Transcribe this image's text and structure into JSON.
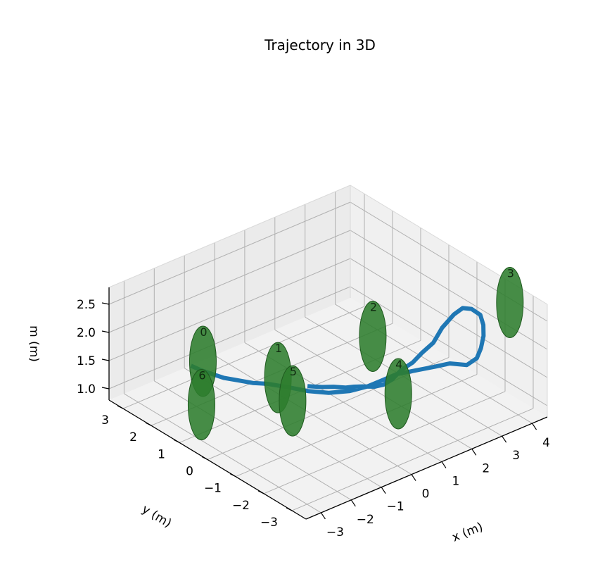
{
  "chart_data": {
    "type": "line3d",
    "title": "Trajectory in 3D",
    "xlabel": "x (m)",
    "ylabel": "y (m)",
    "zlabel": "m (m)",
    "xlim": [
      -3.5,
      4.5
    ],
    "ylim": [
      -3.5,
      3.5
    ],
    "zlim": [
      0.8,
      2.8
    ],
    "xticks": [
      -3,
      -2,
      -1,
      0,
      1,
      2,
      3,
      4
    ],
    "xtick_labels": [
      "−3",
      "−2",
      "−1",
      "0",
      "1",
      "2",
      "3",
      "4"
    ],
    "yticks": [
      -3,
      -2,
      -1,
      0,
      1,
      2,
      3
    ],
    "ytick_labels": [
      "−3",
      "−2",
      "−1",
      "0",
      "1",
      "2",
      "3"
    ],
    "zticks": [
      1.0,
      1.5,
      2.0,
      2.5
    ],
    "ztick_labels": [
      "1.0",
      "1.5",
      "2.0",
      "2.5"
    ],
    "grid": true,
    "view": {
      "elev": 20,
      "azim": -135
    },
    "trajectory": {
      "color": "#1f77b4",
      "x": [
        0.0,
        0.2,
        0.4,
        0.6,
        0.8,
        1.0,
        1.2,
        1.4,
        1.6,
        1.8,
        2.0,
        2.2,
        2.4,
        2.6,
        2.8,
        3.0,
        3.2,
        3.4,
        3.5,
        3.6,
        3.7,
        3.75,
        3.7,
        3.6,
        3.3,
        2.9,
        2.4,
        2.0,
        1.6,
        1.2,
        0.8,
        0.4,
        0.0,
        -0.4,
        -0.6,
        -0.8,
        -1.0,
        -1.1,
        -1.2,
        -1.25
      ],
      "y": [
        0.2,
        -0.1,
        -0.3,
        -0.5,
        -0.6,
        -0.7,
        -0.9,
        -1.0,
        -1.1,
        -1.2,
        -1.4,
        -1.5,
        -1.7,
        -1.8,
        -2.0,
        -2.1,
        -2.2,
        -2.3,
        -2.3,
        -2.2,
        -2.0,
        -1.8,
        -1.5,
        -1.0,
        -0.8,
        -0.6,
        -0.4,
        -0.3,
        -0.2,
        0.0,
        0.3,
        0.6,
        0.9,
        1.2,
        1.5,
        1.8,
        2.1,
        2.4,
        2.7,
        3.0
      ],
      "z": [
        1.25,
        1.28,
        1.3,
        1.3,
        1.3,
        1.29,
        1.3,
        1.32,
        1.4,
        1.55,
        1.7,
        1.85,
        2.05,
        2.3,
        2.55,
        2.65,
        2.62,
        2.5,
        2.3,
        2.05,
        1.75,
        1.5,
        1.3,
        1.2,
        1.15,
        1.12,
        1.1,
        1.05,
        1.0,
        0.95,
        0.92,
        0.95,
        1.02,
        1.08,
        1.05,
        1.05,
        1.05,
        1.05,
        1.05,
        1.05
      ]
    },
    "waypoints": {
      "color": "#2e7d2e",
      "labels": [
        "0",
        "1",
        "2",
        "3",
        "4",
        "5",
        "6"
      ],
      "x": [
        -1.6,
        -0.7,
        1.7,
        4.1,
        1.8,
        -0.4,
        -2.3
      ],
      "y": [
        2.2,
        0.5,
        -0.3,
        -2.6,
        -1.1,
        0.3,
        1.5
      ],
      "z": [
        1.45,
        1.47,
        1.9,
        2.65,
        1.1,
        1.05,
        1.05
      ]
    }
  }
}
